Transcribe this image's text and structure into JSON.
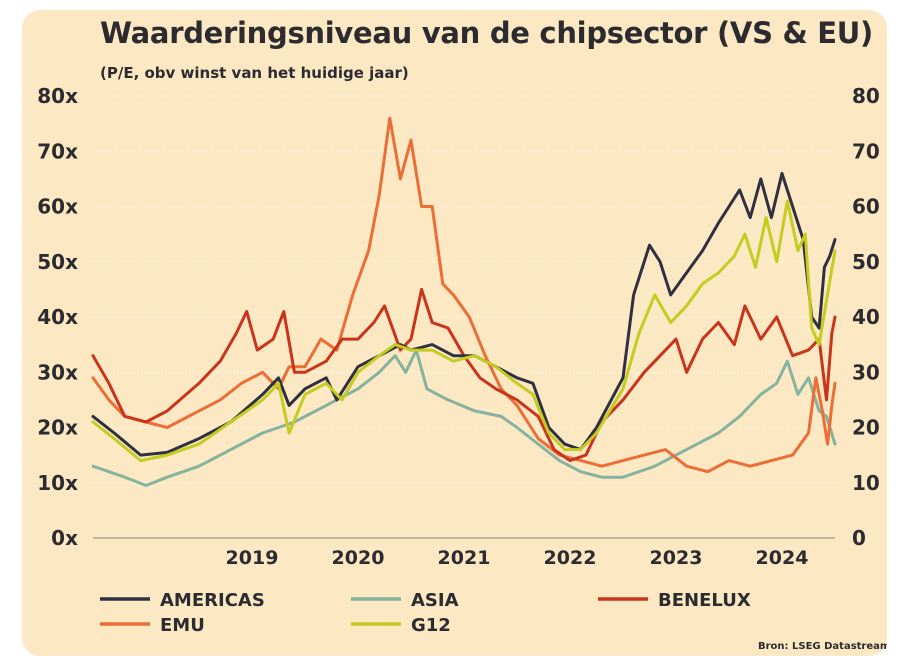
{
  "title": "Waarderingsniveau van de chipsector (VS & EU)",
  "subtitle": "(P/E, obv winst van het huidige jaar)",
  "source": "Bron: LSEG Datastream",
  "chart_data": {
    "type": "line",
    "ylim": [
      0,
      80
    ],
    "xlim": [
      2018.0,
      2025.0
    ],
    "grid": true,
    "legend_position": "bottom",
    "yticks_left": [
      "0x",
      "10x",
      "20x",
      "30x",
      "40x",
      "50x",
      "60x",
      "70x",
      "80x"
    ],
    "yticks_right": [
      "0",
      "10",
      "20",
      "30",
      "40",
      "50",
      "60",
      "70",
      "80"
    ],
    "ytick_values": [
      0,
      10,
      20,
      30,
      40,
      50,
      60,
      70,
      80
    ],
    "xticks": [
      "2019",
      "2020",
      "2021",
      "2022",
      "2023",
      "2024"
    ],
    "xtick_positions": [
      2019.5,
      2020.5,
      2021.5,
      2022.5,
      2023.5,
      2024.5
    ],
    "series": [
      {
        "name": "AMERICAS",
        "color": "#2f3140",
        "points": [
          [
            2018.0,
            22
          ],
          [
            2018.2,
            19
          ],
          [
            2018.45,
            15
          ],
          [
            2018.7,
            15.5
          ],
          [
            2019.0,
            18
          ],
          [
            2019.3,
            21
          ],
          [
            2019.6,
            26
          ],
          [
            2019.75,
            29
          ],
          [
            2019.85,
            24
          ],
          [
            2020.0,
            27
          ],
          [
            2020.2,
            29
          ],
          [
            2020.3,
            25
          ],
          [
            2020.5,
            31
          ],
          [
            2020.7,
            33
          ],
          [
            2020.9,
            35
          ],
          [
            2021.0,
            34
          ],
          [
            2021.2,
            35
          ],
          [
            2021.4,
            33
          ],
          [
            2021.6,
            33
          ],
          [
            2021.8,
            31
          ],
          [
            2022.0,
            29
          ],
          [
            2022.15,
            28
          ],
          [
            2022.3,
            20
          ],
          [
            2022.45,
            17
          ],
          [
            2022.6,
            16
          ],
          [
            2022.75,
            20
          ],
          [
            2023.0,
            29
          ],
          [
            2023.1,
            44
          ],
          [
            2023.25,
            53
          ],
          [
            2023.35,
            50
          ],
          [
            2023.45,
            44
          ],
          [
            2023.6,
            48
          ],
          [
            2023.75,
            52
          ],
          [
            2023.9,
            57
          ],
          [
            2024.0,
            60
          ],
          [
            2024.1,
            63
          ],
          [
            2024.2,
            58
          ],
          [
            2024.3,
            65
          ],
          [
            2024.4,
            58
          ],
          [
            2024.5,
            66
          ],
          [
            2024.6,
            60
          ],
          [
            2024.7,
            54
          ],
          [
            2024.78,
            40
          ],
          [
            2024.85,
            38
          ],
          [
            2024.9,
            49
          ],
          [
            2024.95,
            51
          ],
          [
            2025.0,
            54
          ]
        ]
      },
      {
        "name": "ASIA",
        "color": "#86b3a0",
        "points": [
          [
            2018.0,
            13
          ],
          [
            2018.3,
            11
          ],
          [
            2018.5,
            9.5
          ],
          [
            2018.7,
            11
          ],
          [
            2019.0,
            13
          ],
          [
            2019.3,
            16
          ],
          [
            2019.6,
            19
          ],
          [
            2019.9,
            21
          ],
          [
            2020.2,
            24
          ],
          [
            2020.5,
            27
          ],
          [
            2020.7,
            30
          ],
          [
            2020.85,
            33
          ],
          [
            2020.95,
            30
          ],
          [
            2021.05,
            34
          ],
          [
            2021.15,
            27
          ],
          [
            2021.35,
            25
          ],
          [
            2021.6,
            23
          ],
          [
            2021.85,
            22
          ],
          [
            2022.0,
            20
          ],
          [
            2022.2,
            17
          ],
          [
            2022.4,
            14
          ],
          [
            2022.6,
            12
          ],
          [
            2022.8,
            11
          ],
          [
            2023.0,
            11
          ],
          [
            2023.3,
            13
          ],
          [
            2023.5,
            15
          ],
          [
            2023.7,
            17
          ],
          [
            2023.9,
            19
          ],
          [
            2024.1,
            22
          ],
          [
            2024.3,
            26
          ],
          [
            2024.45,
            28
          ],
          [
            2024.55,
            32
          ],
          [
            2024.65,
            26
          ],
          [
            2024.75,
            29
          ],
          [
            2024.85,
            23
          ],
          [
            2024.92,
            22
          ],
          [
            2025.0,
            17
          ]
        ]
      },
      {
        "name": "BENELUX",
        "color": "#c9351b",
        "points": [
          [
            2018.0,
            33
          ],
          [
            2018.15,
            28
          ],
          [
            2018.3,
            22
          ],
          [
            2018.5,
            21
          ],
          [
            2018.7,
            23
          ],
          [
            2019.0,
            28
          ],
          [
            2019.2,
            32
          ],
          [
            2019.35,
            37
          ],
          [
            2019.45,
            41
          ],
          [
            2019.55,
            34
          ],
          [
            2019.7,
            36
          ],
          [
            2019.8,
            41
          ],
          [
            2019.9,
            30
          ],
          [
            2020.0,
            30
          ],
          [
            2020.2,
            32
          ],
          [
            2020.35,
            36
          ],
          [
            2020.5,
            36
          ],
          [
            2020.65,
            39
          ],
          [
            2020.75,
            42
          ],
          [
            2020.9,
            34
          ],
          [
            2021.0,
            36
          ],
          [
            2021.1,
            45
          ],
          [
            2021.2,
            39
          ],
          [
            2021.35,
            38
          ],
          [
            2021.5,
            33
          ],
          [
            2021.65,
            29
          ],
          [
            2021.8,
            27
          ],
          [
            2022.0,
            25
          ],
          [
            2022.2,
            22
          ],
          [
            2022.35,
            16
          ],
          [
            2022.5,
            14
          ],
          [
            2022.65,
            15
          ],
          [
            2022.8,
            21
          ],
          [
            2023.0,
            25
          ],
          [
            2023.2,
            30
          ],
          [
            2023.35,
            33
          ],
          [
            2023.5,
            36
          ],
          [
            2023.6,
            30
          ],
          [
            2023.75,
            36
          ],
          [
            2023.9,
            39
          ],
          [
            2024.05,
            35
          ],
          [
            2024.15,
            42
          ],
          [
            2024.3,
            36
          ],
          [
            2024.45,
            40
          ],
          [
            2024.6,
            33
          ],
          [
            2024.75,
            34
          ],
          [
            2024.85,
            36
          ],
          [
            2024.92,
            25
          ],
          [
            2024.97,
            37
          ],
          [
            2025.0,
            40
          ]
        ]
      },
      {
        "name": "EMU",
        "color": "#ec6e37",
        "points": [
          [
            2018.0,
            29
          ],
          [
            2018.15,
            25
          ],
          [
            2018.3,
            22
          ],
          [
            2018.5,
            21
          ],
          [
            2018.7,
            20
          ],
          [
            2019.0,
            23
          ],
          [
            2019.2,
            25
          ],
          [
            2019.4,
            28
          ],
          [
            2019.6,
            30
          ],
          [
            2019.75,
            27
          ],
          [
            2019.85,
            31
          ],
          [
            2020.0,
            31
          ],
          [
            2020.15,
            36
          ],
          [
            2020.3,
            34
          ],
          [
            2020.45,
            44
          ],
          [
            2020.6,
            52
          ],
          [
            2020.7,
            62
          ],
          [
            2020.8,
            76
          ],
          [
            2020.9,
            65
          ],
          [
            2021.0,
            72
          ],
          [
            2021.1,
            60
          ],
          [
            2021.2,
            60
          ],
          [
            2021.3,
            46
          ],
          [
            2021.4,
            44
          ],
          [
            2021.55,
            40
          ],
          [
            2021.7,
            33
          ],
          [
            2021.85,
            27
          ],
          [
            2022.0,
            24
          ],
          [
            2022.2,
            18
          ],
          [
            2022.4,
            15
          ],
          [
            2022.6,
            14
          ],
          [
            2022.8,
            13
          ],
          [
            2023.0,
            14
          ],
          [
            2023.2,
            15
          ],
          [
            2023.4,
            16
          ],
          [
            2023.6,
            13
          ],
          [
            2023.8,
            12
          ],
          [
            2024.0,
            14
          ],
          [
            2024.2,
            13
          ],
          [
            2024.4,
            14
          ],
          [
            2024.6,
            15
          ],
          [
            2024.75,
            19
          ],
          [
            2024.82,
            29
          ],
          [
            2024.88,
            23
          ],
          [
            2024.93,
            17
          ],
          [
            2024.97,
            24
          ],
          [
            2025.0,
            28
          ]
        ]
      },
      {
        "name": "G12",
        "color": "#c4cc1f",
        "points": [
          [
            2018.0,
            21
          ],
          [
            2018.2,
            18
          ],
          [
            2018.45,
            14
          ],
          [
            2018.7,
            15
          ],
          [
            2019.0,
            17
          ],
          [
            2019.3,
            21
          ],
          [
            2019.6,
            25
          ],
          [
            2019.75,
            28
          ],
          [
            2019.85,
            19
          ],
          [
            2020.0,
            26
          ],
          [
            2020.2,
            28
          ],
          [
            2020.35,
            25
          ],
          [
            2020.5,
            30
          ],
          [
            2020.7,
            33
          ],
          [
            2020.85,
            35
          ],
          [
            2021.0,
            34
          ],
          [
            2021.2,
            34
          ],
          [
            2021.4,
            32
          ],
          [
            2021.6,
            33
          ],
          [
            2021.8,
            31
          ],
          [
            2022.0,
            28
          ],
          [
            2022.15,
            26
          ],
          [
            2022.3,
            19
          ],
          [
            2022.45,
            16
          ],
          [
            2022.6,
            16
          ],
          [
            2022.75,
            19
          ],
          [
            2023.0,
            27
          ],
          [
            2023.15,
            37
          ],
          [
            2023.3,
            44
          ],
          [
            2023.45,
            39
          ],
          [
            2023.6,
            42
          ],
          [
            2023.75,
            46
          ],
          [
            2023.9,
            48
          ],
          [
            2024.05,
            51
          ],
          [
            2024.15,
            55
          ],
          [
            2024.25,
            49
          ],
          [
            2024.35,
            58
          ],
          [
            2024.45,
            50
          ],
          [
            2024.55,
            61
          ],
          [
            2024.65,
            52
          ],
          [
            2024.72,
            55
          ],
          [
            2024.78,
            38
          ],
          [
            2024.85,
            35
          ],
          [
            2024.92,
            43
          ],
          [
            2025.0,
            52
          ]
        ]
      }
    ]
  }
}
